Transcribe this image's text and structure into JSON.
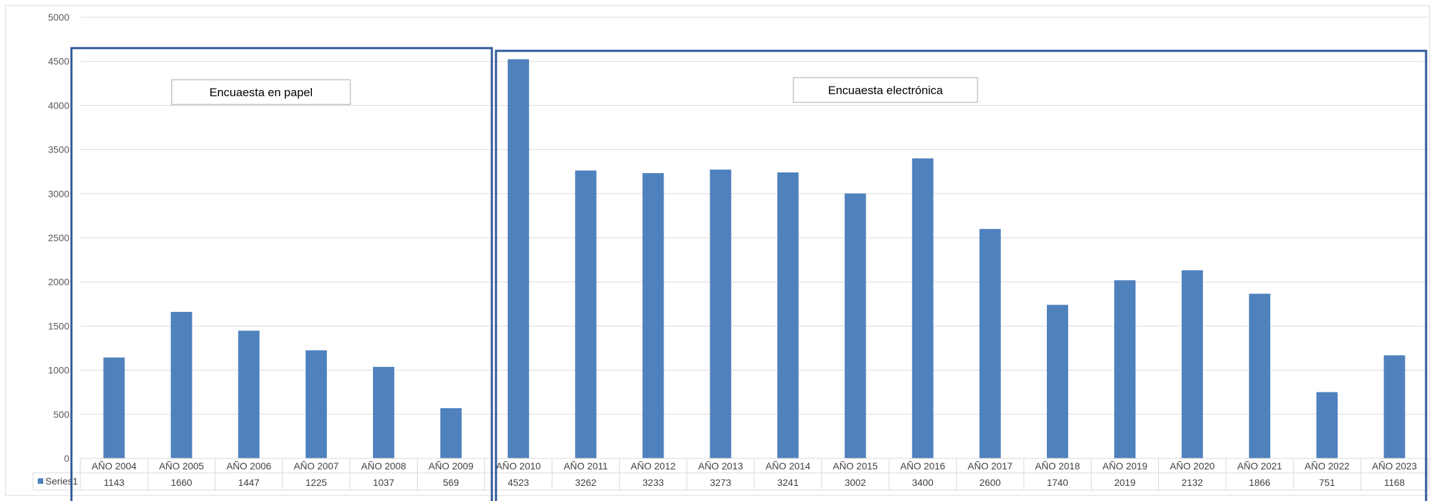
{
  "chart_data": {
    "type": "bar",
    "categories": [
      "AÑO 2004",
      "AÑO 2005",
      "AÑO 2006",
      "AÑO 2007",
      "AÑO 2008",
      "AÑO 2009",
      "AÑO 2010",
      "AÑO 2011",
      "AÑO 2012",
      "AÑO 2013",
      "AÑO 2014",
      "AÑO 2015",
      "AÑO 2016",
      "AÑO 2017",
      "AÑO 2018",
      "AÑO 2019",
      "AÑO 2020",
      "AÑO 2021",
      "AÑO 2022",
      "AÑO 2023"
    ],
    "series": [
      {
        "name": "Series1",
        "values": [
          1143,
          1660,
          1447,
          1225,
          1037,
          569,
          4523,
          3262,
          3233,
          3273,
          3241,
          3002,
          3400,
          2600,
          1740,
          2019,
          2132,
          1866,
          751,
          1168
        ],
        "color": "#4f81bd"
      }
    ],
    "ylim": [
      0,
      5000
    ],
    "yticks": [
      0,
      500,
      1000,
      1500,
      2000,
      2500,
      3000,
      3500,
      4000,
      4500,
      5000
    ],
    "grid": true,
    "legend": "data-table",
    "annotations": [
      {
        "label": "Encuaesta en papel",
        "categories": [
          "AÑO 2004",
          "AÑO 2009"
        ]
      },
      {
        "label": "Encuaesta electrónica",
        "categories": [
          "AÑO 2010",
          "AÑO 2023"
        ]
      }
    ],
    "colors": {
      "bar": "#4f81bd",
      "annotation_frame": "#2e5597",
      "grid": "#d9d9d9"
    }
  }
}
